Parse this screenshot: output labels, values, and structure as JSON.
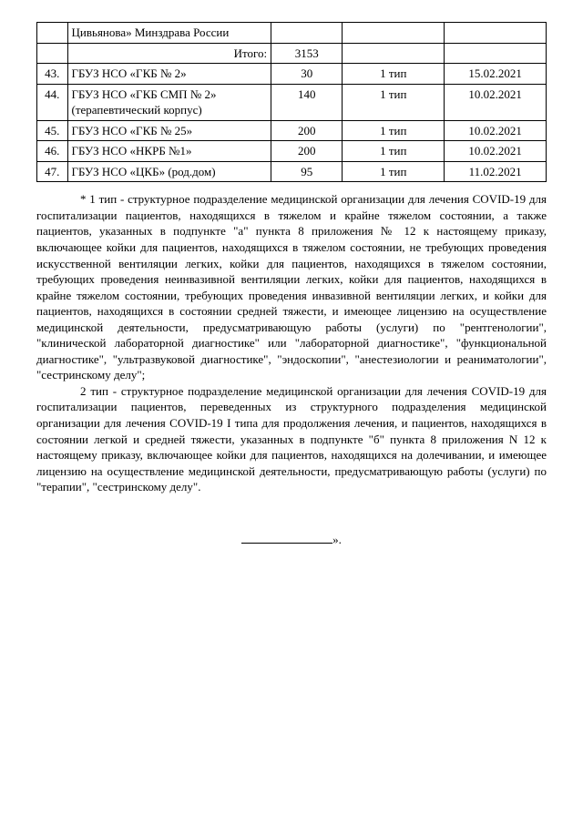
{
  "table": {
    "rows": [
      {
        "num": "",
        "name": "Цивьянова» Минздрава России",
        "value": "",
        "type": "",
        "date": ""
      },
      {
        "num": "",
        "name_align": "right",
        "name": "Итого:",
        "value": "3153",
        "type": "",
        "date": ""
      },
      {
        "num": "43.",
        "name": "ГБУЗ НСО «ГКБ № 2»",
        "value": "30",
        "type": "1 тип",
        "date": "15.02.2021"
      },
      {
        "num": "44.",
        "name": "ГБУЗ НСО «ГКБ СМП № 2» (терапевтический корпус)",
        "value": "140",
        "type": "1 тип",
        "date": "10.02.2021"
      },
      {
        "num": "45.",
        "name": "ГБУЗ НСО «ГКБ № 25»",
        "value": "200",
        "type": "1 тип",
        "date": "10.02.2021"
      },
      {
        "num": "46.",
        "name": "ГБУЗ НСО «НКРБ №1»",
        "value": "200",
        "type": "1 тип",
        "date": "10.02.2021"
      },
      {
        "num": "47.",
        "name": "ГБУЗ НСО «ЦКБ» (род.дом)",
        "value": "95",
        "type": "1 тип",
        "date": "11.02.2021"
      }
    ]
  },
  "paragraphs": {
    "p1": "* 1 тип - структурное подразделение медицинской организации для лечения COVID-19 для госпитализации пациентов, находящихся в тяжелом и крайне тяжелом состоянии, а также пациентов, указанных в подпункте \"а\" пункта 8 приложения № 12 к настоящему приказу, включающее койки для пациентов, находящихся в тяжелом состоянии, не требующих проведения искусственной вентиляции легких, койки для пациентов, находящихся в тяжелом состоянии, требующих проведения неинвазивной вентиляции легких, койки для пациентов, находящихся в крайне тяжелом состоянии, требующих проведения инвазивной вентиляции легких, и койки для пациентов, находящихся в состоянии средней тяжести, и имеющее лицензию на осуществление медицинской деятельности, предусматривающую работы (услуги) по \"рентгенологии\", \"клинической лабораторной диагностике\" или \"лабораторной диагностике\", \"функциональной диагностике\", \"ультразвуковой диагностике\", \"эндоскопии\", \"анестезиологии и реаниматологии\", \"сестринскому делу\";",
    "p2": "2 тип - структурное подразделение медицинской организации для лечения COVID-19 для госпитализации пациентов, переведенных из структурного подразделения медицинской организации для лечения COVID-19 I типа для продолжения лечения, и пациентов, находящихся в состоянии легкой и средней тяжести, указанных в подпункте \"б\" пункта 8 приложения N 12 к настоящему приказу, включающее койки для пациентов, находящихся на долечивании, и имеющее лицензию на осуществление медицинской деятельности, предусматривающую работы (услуги) по \"терапии\", \"сестринскому делу\"."
  },
  "signature_suffix": "»."
}
